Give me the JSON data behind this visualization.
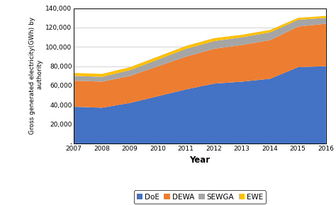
{
  "years": [
    2007,
    2008,
    2009,
    2010,
    2011,
    2012,
    2013,
    2014,
    2015,
    2016
  ],
  "DoE": [
    38000,
    37000,
    42000,
    49000,
    56000,
    62000,
    64000,
    67000,
    79000,
    80000
  ],
  "DEWA": [
    27000,
    27000,
    28000,
    31000,
    34000,
    36000,
    38000,
    40000,
    42000,
    44000
  ],
  "SEWGA": [
    5000,
    5000,
    6000,
    7000,
    8000,
    8000,
    8000,
    8000,
    7000,
    6000
  ],
  "EWE": [
    3000,
    3000,
    3000,
    3000,
    3000,
    3000,
    2500,
    2500,
    2000,
    2000
  ],
  "colors": {
    "DoE": "#4472C4",
    "DEWA": "#ED7D31",
    "SEWGA": "#A5A5A5",
    "EWE": "#FFC000"
  },
  "ylabel": "Gross generated electricity(GWh) by\n authority",
  "xlabel": "Year",
  "ylim": [
    0,
    140000
  ],
  "yticks": [
    0,
    20000,
    40000,
    60000,
    80000,
    100000,
    120000,
    140000
  ],
  "ytick_labels": [
    "-",
    "20,000",
    "40,000",
    "60,000",
    "80,000",
    "100,000",
    "120,000",
    "140,000"
  ],
  "legend_labels": [
    "DoE",
    "DEWA",
    "SEWGA",
    "EWE"
  ]
}
